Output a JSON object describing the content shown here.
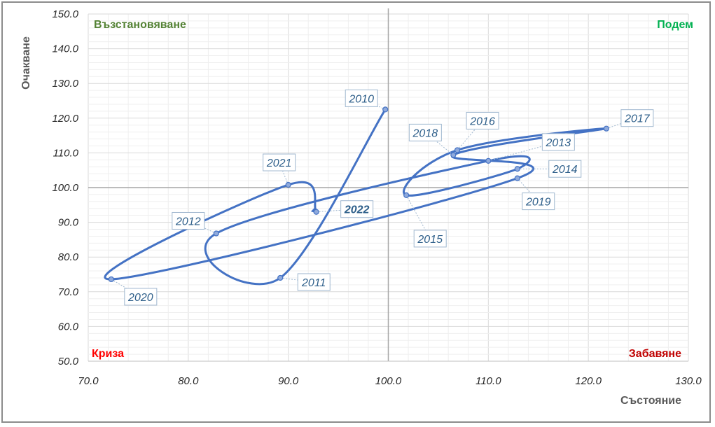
{
  "chart_data": {
    "type": "scatter",
    "title": "",
    "xlabel": "Състояние",
    "ylabel": "Очакване",
    "xlim": [
      70,
      130
    ],
    "ylim": [
      50,
      150
    ],
    "x_ticks": [
      "70.0",
      "80.0",
      "90.0",
      "100.0",
      "110.0",
      "120.0",
      "130.0"
    ],
    "y_ticks": [
      "50.0",
      "60.0",
      "70.0",
      "80.0",
      "90.0",
      "100.0",
      "110.0",
      "120.0",
      "130.0",
      "140.0",
      "150.0"
    ],
    "reference_lines": {
      "x": 100,
      "y": 100
    },
    "grid": true,
    "line_style": "smoothed",
    "series": [
      {
        "points": [
          {
            "label": "2010",
            "x": 99.7,
            "y": 122.5
          },
          {
            "label": "2011",
            "x": 89.2,
            "y": 74.0
          },
          {
            "label": "2012",
            "x": 82.8,
            "y": 86.8
          },
          {
            "label": "2013",
            "x": 110.0,
            "y": 107.7
          },
          {
            "label": "2014",
            "x": 112.9,
            "y": 105.4
          },
          {
            "label": "2015",
            "x": 101.8,
            "y": 97.8
          },
          {
            "label": "2016",
            "x": 106.9,
            "y": 110.8
          },
          {
            "label": "2017",
            "x": 121.8,
            "y": 117.0
          },
          {
            "label": "2018",
            "x": 106.5,
            "y": 109.4
          },
          {
            "label": "2019",
            "x": 112.9,
            "y": 102.7
          },
          {
            "label": "2020",
            "x": 72.3,
            "y": 73.6
          },
          {
            "label": "2021",
            "x": 90.0,
            "y": 100.8
          },
          {
            "label": "2022",
            "x": 92.8,
            "y": 93.0
          }
        ]
      }
    ],
    "quadrants": {
      "top_left": {
        "label": "Възстановяване",
        "color": "#548235"
      },
      "top_right": {
        "label": "Подем",
        "color": "#00b050"
      },
      "bottom_left": {
        "label": "Криза",
        "color": "#ff0000"
      },
      "bottom_right": {
        "label": "Забавяне",
        "color": "#c00000"
      }
    },
    "colors": {
      "line": "#4472c4",
      "marker_fill": "#8faadc",
      "grid": "#e8e8e8",
      "reference": "#a6a6a6"
    }
  }
}
